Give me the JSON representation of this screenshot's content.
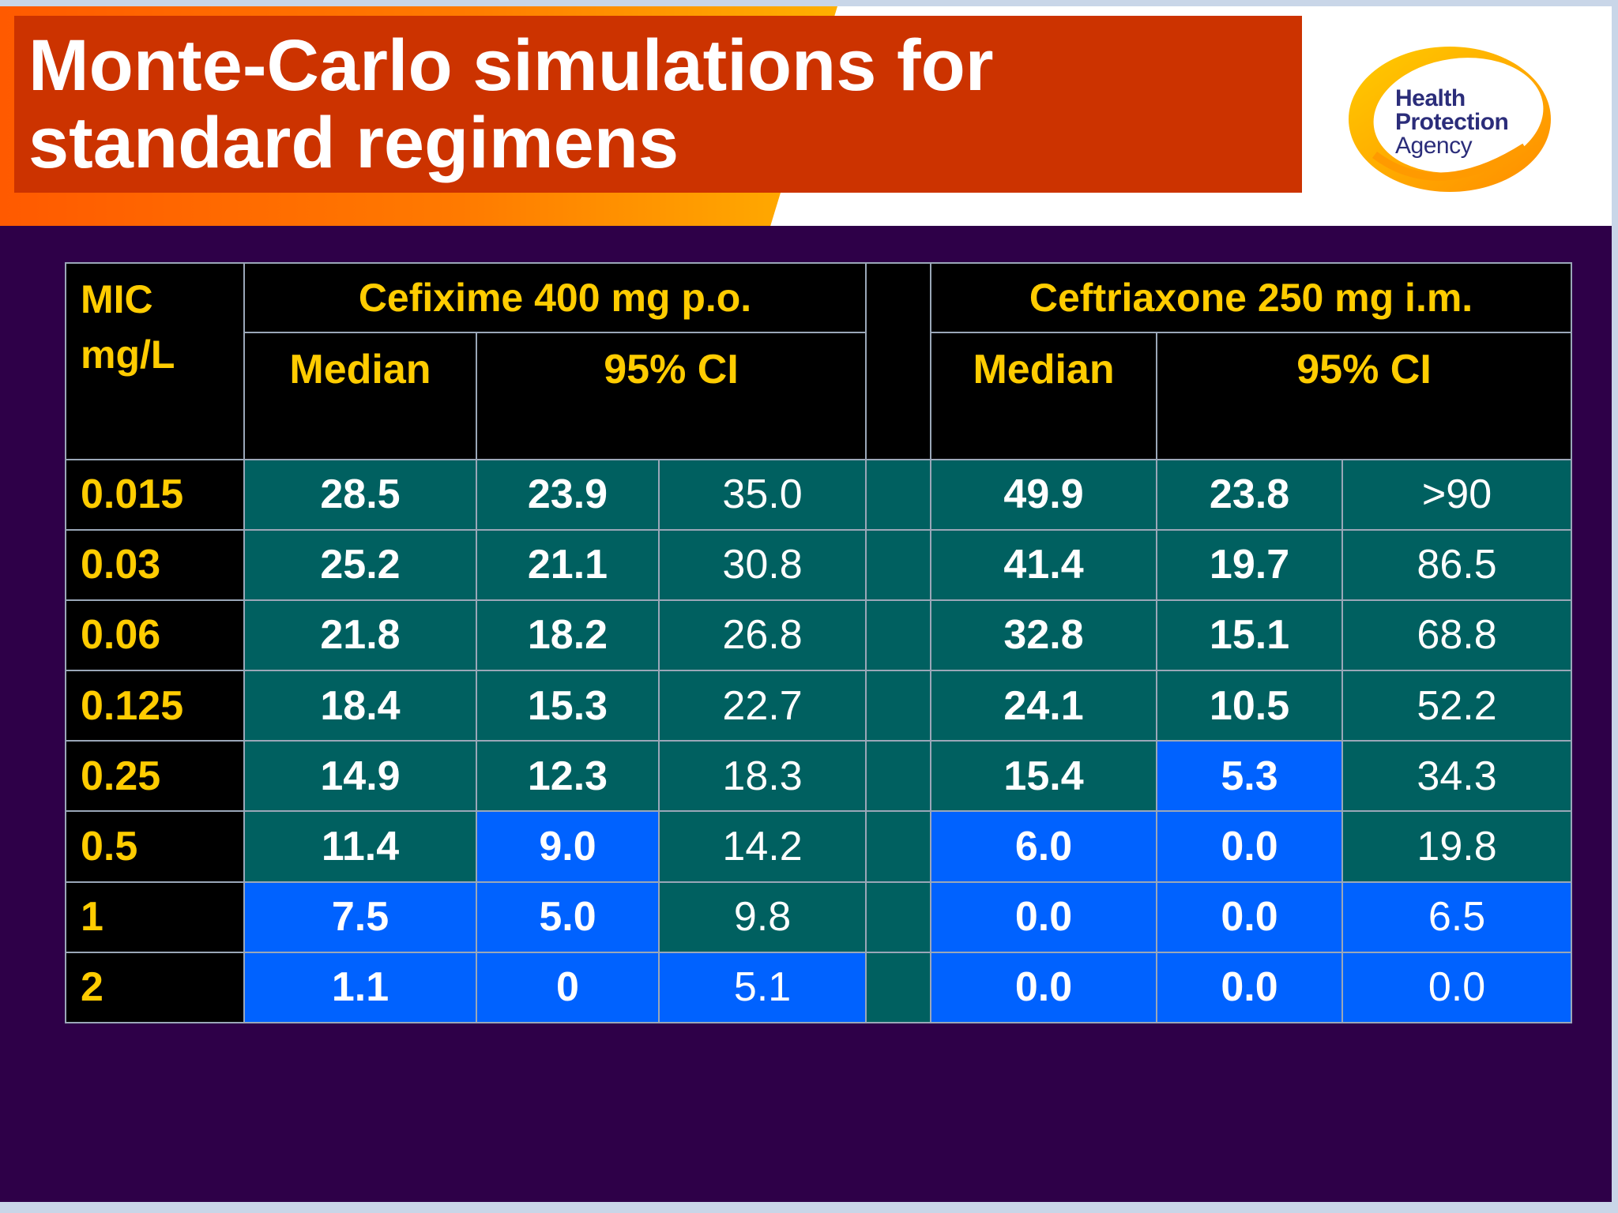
{
  "title": "Monte-Carlo simulations for\nstandard regimens",
  "logo": {
    "line1": "Health",
    "line2": "Protection",
    "line3": "Agency"
  },
  "colors": {
    "teal": "#006060",
    "blue": "#0062ff",
    "header_text": "#ffcc00",
    "background": "#2e0048",
    "title_bar": "#cc3300"
  },
  "table": {
    "mic_header": "MIC\nmg/L",
    "groups": [
      "Cefixime 400 mg p.o.",
      "Ceftriaxone 250 mg i.m."
    ],
    "subheaders": [
      "Median",
      "95% CI",
      "Median",
      "95% CI"
    ],
    "rows": [
      {
        "mic": "0.015",
        "cefixime": {
          "median": "28.5",
          "ci_low": "23.9",
          "ci_high": "35.0"
        },
        "ceftriaxone": {
          "median": "49.9",
          "ci_low": "23.8",
          "ci_high": ">90"
        }
      },
      {
        "mic": "0.03",
        "cefixime": {
          "median": "25.2",
          "ci_low": "21.1",
          "ci_high": "30.8"
        },
        "ceftriaxone": {
          "median": "41.4",
          "ci_low": "19.7",
          "ci_high": "86.5"
        }
      },
      {
        "mic": "0.06",
        "cefixime": {
          "median": "21.8",
          "ci_low": "18.2",
          "ci_high": "26.8"
        },
        "ceftriaxone": {
          "median": "32.8",
          "ci_low": "15.1",
          "ci_high": "68.8"
        }
      },
      {
        "mic": "0.125",
        "cefixime": {
          "median": "18.4",
          "ci_low": "15.3",
          "ci_high": "22.7"
        },
        "ceftriaxone": {
          "median": "24.1",
          "ci_low": "10.5",
          "ci_high": "52.2"
        }
      },
      {
        "mic": "0.25",
        "cefixime": {
          "median": "14.9",
          "ci_low": "12.3",
          "ci_high": "18.3"
        },
        "ceftriaxone": {
          "median": "15.4",
          "ci_low": "5.3",
          "ci_high": "34.3"
        }
      },
      {
        "mic": "0.5",
        "cefixime": {
          "median": "11.4",
          "ci_low": "9.0",
          "ci_high": "14.2"
        },
        "ceftriaxone": {
          "median": "6.0",
          "ci_low": "0.0",
          "ci_high": "19.8"
        }
      },
      {
        "mic": "1",
        "cefixime": {
          "median": "7.5",
          "ci_low": "5.0",
          "ci_high": "9.8"
        },
        "ceftriaxone": {
          "median": "0.0",
          "ci_low": "0.0",
          "ci_high": "6.5"
        }
      },
      {
        "mic": "2",
        "cefixime": {
          "median": "1.1",
          "ci_low": "0",
          "ci_high": "5.1"
        },
        "ceftriaxone": {
          "median": "0.0",
          "ci_low": "0.0",
          "ci_high": "0.0"
        }
      }
    ]
  }
}
